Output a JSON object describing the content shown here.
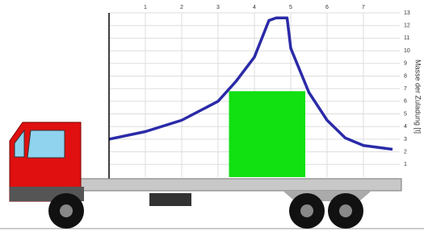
{
  "chart_data": {
    "type": "line",
    "y_label": "Masse der Zuladung [t]",
    "xlim": [
      0,
      8
    ],
    "xticks": [
      1,
      2,
      3,
      4,
      5,
      6,
      7
    ],
    "ylim": [
      0,
      13
    ],
    "yticks": [
      1,
      2,
      3,
      4,
      5,
      6,
      7,
      8,
      9,
      10,
      11,
      12,
      13
    ],
    "grid": true,
    "series": [
      {
        "color": "#2a2aa8",
        "x": [
          0,
          1,
          2,
          3,
          3.5,
          4,
          4.4,
          4.6,
          4.9,
          5,
          5.5,
          6,
          6.5,
          7,
          7.8
        ],
        "values": [
          3,
          3.6,
          4.5,
          6,
          7.6,
          9.5,
          12.4,
          12.6,
          12.6,
          10.2,
          6.7,
          4.5,
          3.1,
          2.5,
          2.2
        ]
      }
    ],
    "load_block": {
      "color": "#11e011",
      "x0": 3.3,
      "x1": 5.4,
      "value": 6.8
    }
  }
}
